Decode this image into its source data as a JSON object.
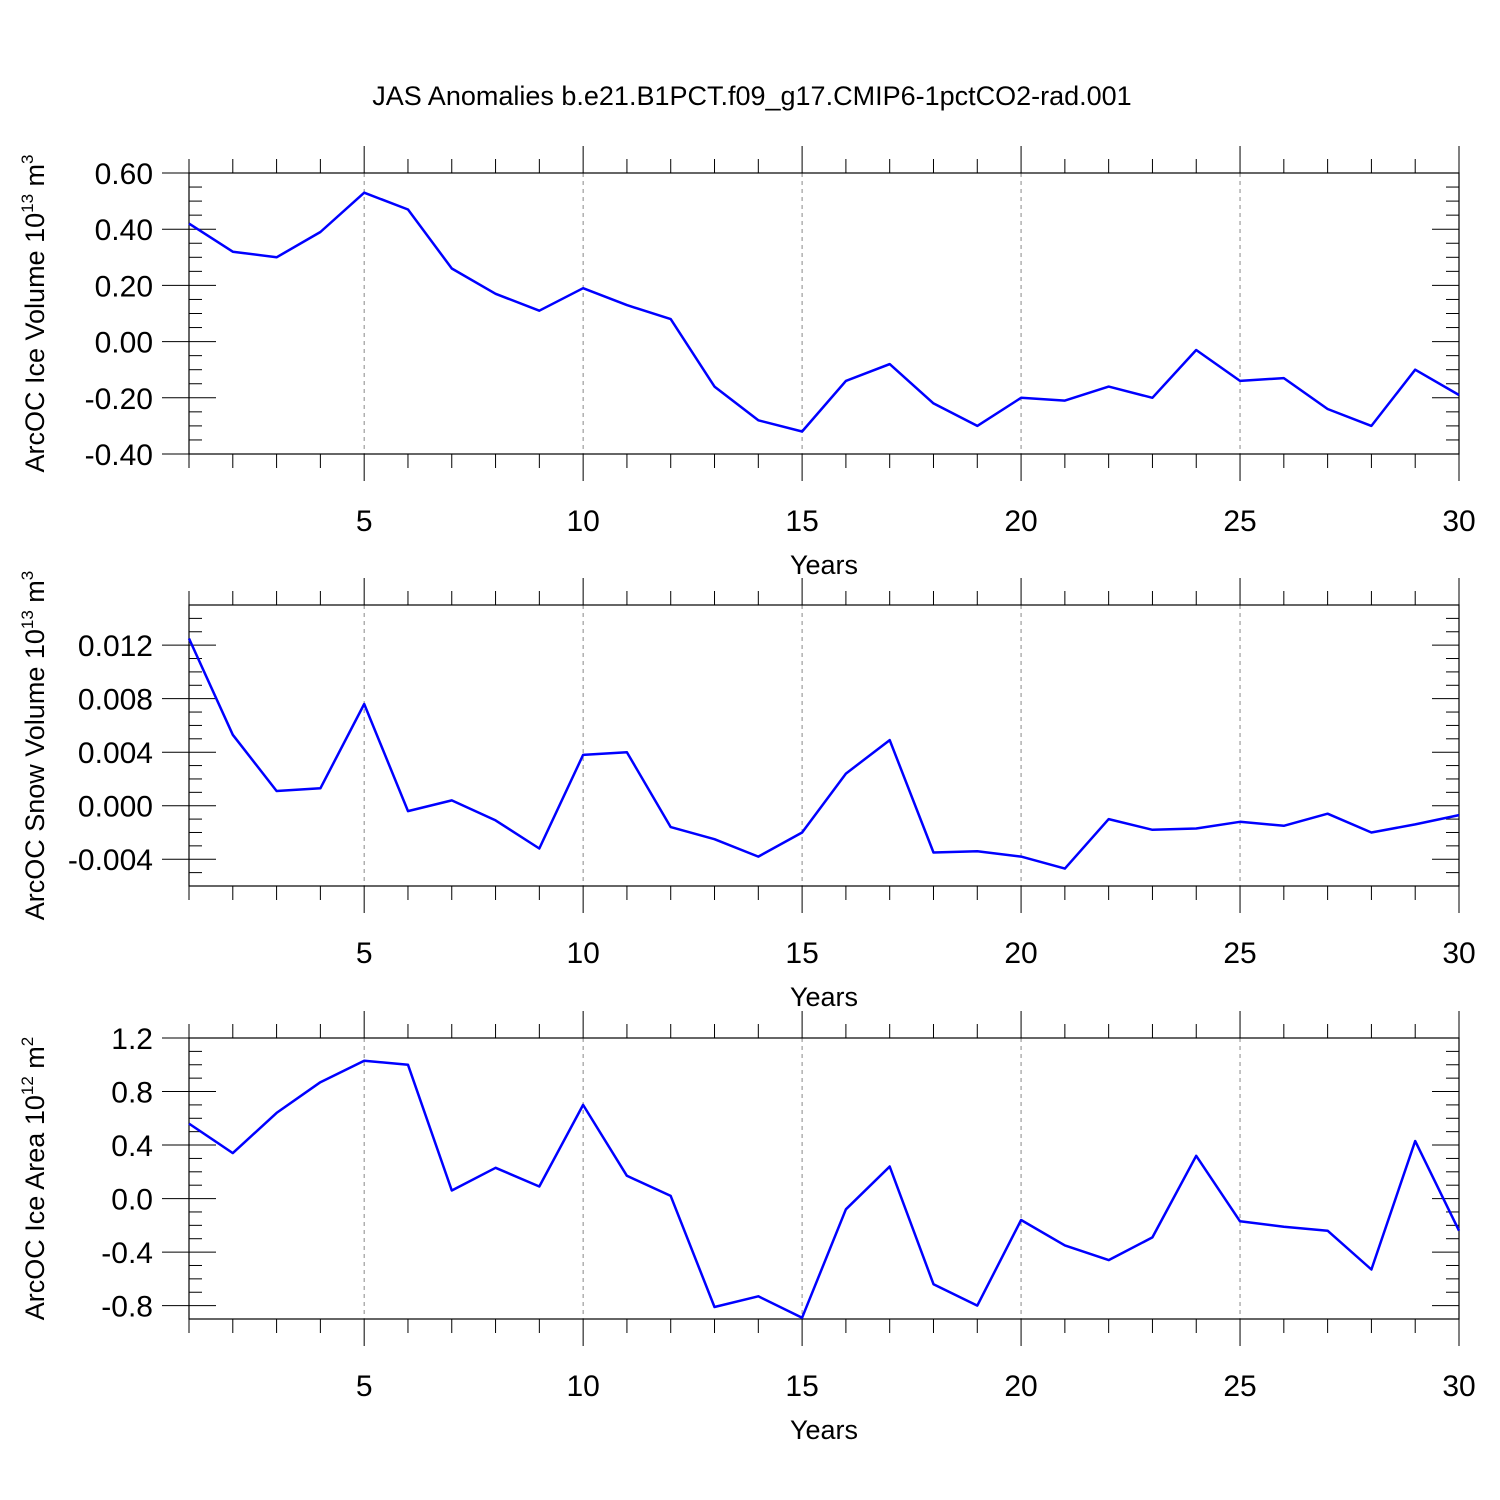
{
  "title": "JAS Anomalies b.e21.B1PCT.f09_g17.CMIP6-1pctCO2-rad.001",
  "colors": {
    "series": "#0000ff",
    "grid": "#888888",
    "axis": "#000000"
  },
  "chart_data": [
    {
      "type": "line",
      "ylabel_main": "ArcOC Ice Volume 10",
      "ylabel_exp": "13",
      "ylabel_unit": "m",
      "ylabel_unit_exp": "3",
      "xlabel": "Years",
      "xlim": [
        1,
        30
      ],
      "ylim": [
        -0.4,
        0.6
      ],
      "y_ticks": [
        "0.60",
        "0.40",
        "0.20",
        "0.00",
        "-0.20",
        "-0.40"
      ],
      "y_tick_values": [
        0.6,
        0.4,
        0.2,
        0.0,
        -0.2,
        -0.4
      ],
      "x_ticks": [
        "5",
        "10",
        "15",
        "20",
        "25",
        "30"
      ],
      "x_tick_values": [
        5,
        10,
        15,
        20,
        25,
        30
      ],
      "grid": "vertical dashed at x major ticks",
      "x": [
        1,
        2,
        3,
        4,
        5,
        6,
        7,
        8,
        9,
        10,
        11,
        12,
        13,
        14,
        15,
        16,
        17,
        18,
        19,
        20,
        21,
        22,
        23,
        24,
        25,
        26,
        27,
        28,
        29,
        30
      ],
      "values": [
        0.42,
        0.32,
        0.3,
        0.39,
        0.53,
        0.47,
        0.26,
        0.17,
        0.11,
        0.19,
        0.13,
        0.08,
        -0.16,
        -0.28,
        -0.32,
        -0.14,
        -0.08,
        -0.22,
        -0.3,
        -0.2,
        -0.21,
        -0.16,
        -0.2,
        -0.03,
        -0.14,
        -0.13,
        -0.24,
        -0.3,
        -0.1,
        -0.19
      ]
    },
    {
      "type": "line",
      "ylabel_main": "ArcOC Snow Volume 10",
      "ylabel_exp": "13",
      "ylabel_unit": "m",
      "ylabel_unit_exp": "3",
      "xlabel": "Years",
      "xlim": [
        1,
        30
      ],
      "ylim": [
        -0.006,
        0.015
      ],
      "y_ticks": [
        "0.012",
        "0.008",
        "0.004",
        "0.000",
        "-0.004"
      ],
      "y_tick_values": [
        0.012,
        0.008,
        0.004,
        0.0,
        -0.004
      ],
      "x_ticks": [
        "5",
        "10",
        "15",
        "20",
        "25",
        "30"
      ],
      "x_tick_values": [
        5,
        10,
        15,
        20,
        25,
        30
      ],
      "grid": "vertical dashed at x major ticks",
      "x": [
        1,
        2,
        3,
        4,
        5,
        6,
        7,
        8,
        9,
        10,
        11,
        12,
        13,
        14,
        15,
        16,
        17,
        18,
        19,
        20,
        21,
        22,
        23,
        24,
        25,
        26,
        27,
        28,
        29,
        30
      ],
      "values": [
        0.0125,
        0.0053,
        0.0011,
        0.0013,
        0.0076,
        -0.0004,
        0.0004,
        -0.0011,
        -0.0032,
        0.0038,
        0.004,
        -0.0016,
        -0.0025,
        -0.0038,
        -0.002,
        0.0024,
        0.0049,
        -0.0035,
        -0.0034,
        -0.0038,
        -0.0047,
        -0.001,
        -0.0018,
        -0.0017,
        -0.0012,
        -0.0015,
        -0.0006,
        -0.002,
        -0.0014,
        -0.0007
      ]
    },
    {
      "type": "line",
      "ylabel_main": "ArcOC Ice Area 10",
      "ylabel_exp": "12",
      "ylabel_unit": "m",
      "ylabel_unit_exp": "2",
      "xlabel": "Years",
      "xlim": [
        1,
        30
      ],
      "ylim": [
        -0.9,
        1.2
      ],
      "y_ticks": [
        "1.2",
        "0.8",
        "0.4",
        "0.0",
        "-0.4",
        "-0.8"
      ],
      "y_tick_values": [
        1.2,
        0.8,
        0.4,
        0.0,
        -0.4,
        -0.8
      ],
      "x_ticks": [
        "5",
        "10",
        "15",
        "20",
        "25",
        "30"
      ],
      "x_tick_values": [
        5,
        10,
        15,
        20,
        25,
        30
      ],
      "grid": "vertical dashed at x major ticks",
      "x": [
        1,
        2,
        3,
        4,
        5,
        6,
        7,
        8,
        9,
        10,
        11,
        12,
        13,
        14,
        15,
        16,
        17,
        18,
        19,
        20,
        21,
        22,
        23,
        24,
        25,
        26,
        27,
        28,
        29,
        30
      ],
      "values": [
        0.56,
        0.34,
        0.64,
        0.87,
        1.03,
        1.0,
        0.06,
        0.23,
        0.09,
        0.7,
        0.17,
        0.02,
        -0.81,
        -0.73,
        -0.89,
        -0.08,
        0.24,
        -0.64,
        -0.8,
        -0.16,
        -0.35,
        -0.46,
        -0.29,
        0.32,
        -0.17,
        -0.21,
        -0.24,
        -0.53,
        0.43,
        -0.24
      ]
    }
  ]
}
